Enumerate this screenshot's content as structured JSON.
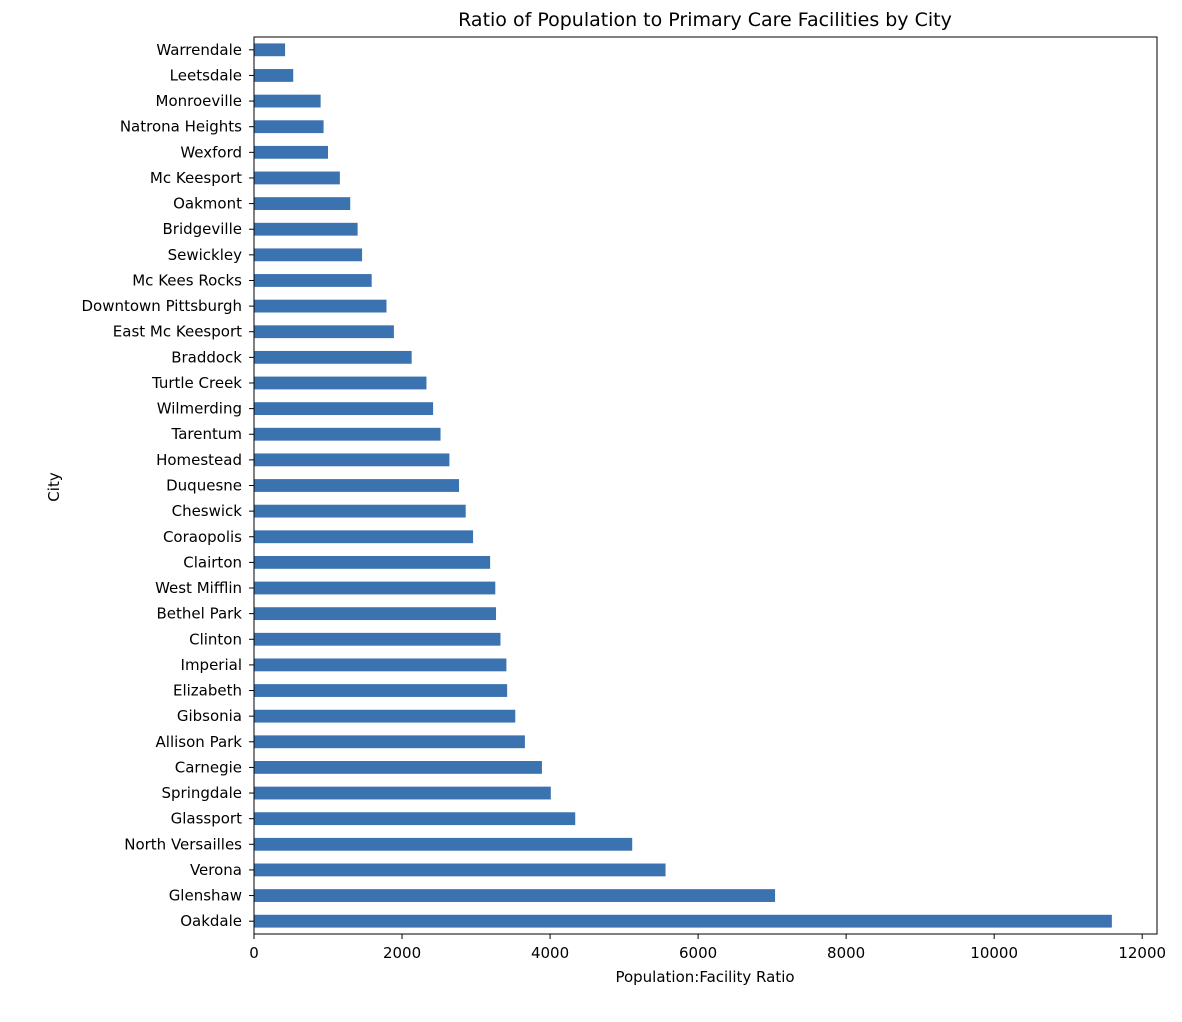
{
  "chart_data": {
    "type": "bar",
    "orientation": "horizontal",
    "title": "Ratio of Population to Primary Care Facilities by City",
    "xlabel": "Population:Facility Ratio",
    "ylabel": "City",
    "xlim": [
      0,
      12200
    ],
    "xticks": [
      0,
      2000,
      4000,
      6000,
      8000,
      10000,
      12000
    ],
    "xtick_labels": [
      "0",
      "2000",
      "4000",
      "6000",
      "8000",
      "10000",
      "12000"
    ],
    "grid": false,
    "legend": "none",
    "bar_color": "#3a73b0",
    "categories": [
      "Warrendale",
      "Leetsdale",
      "Monroeville",
      "Natrona Heights",
      "Wexford",
      "Mc Keesport",
      "Oakmont",
      "Bridgeville",
      "Sewickley",
      "Mc Kees Rocks",
      "Downtown Pittsburgh",
      "East Mc Keesport",
      "Braddock",
      "Turtle Creek",
      "Wilmerding",
      "Tarentum",
      "Homestead",
      "Duquesne",
      "Cheswick",
      "Coraopolis",
      "Clairton",
      "West Mifflin",
      "Bethel Park",
      "Clinton",
      "Imperial",
      "Elizabeth",
      "Gibsonia",
      "Allison Park",
      "Carnegie",
      "Springdale",
      "Glassport",
      "North Versailles",
      "Verona",
      "Glenshaw",
      "Oakdale"
    ],
    "values": [
      420,
      530,
      900,
      940,
      1000,
      1160,
      1300,
      1400,
      1460,
      1590,
      1790,
      1890,
      2130,
      2330,
      2420,
      2520,
      2640,
      2770,
      2860,
      2960,
      3190,
      3260,
      3270,
      3330,
      3410,
      3420,
      3530,
      3660,
      3890,
      4010,
      4340,
      5110,
      5560,
      7040,
      11590
    ]
  }
}
